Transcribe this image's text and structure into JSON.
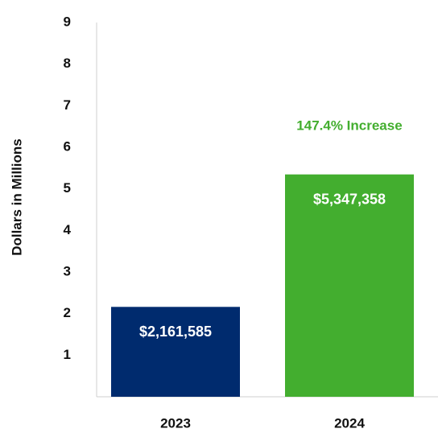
{
  "chart_data": {
    "type": "bar",
    "ylabel": "Dollars in Millions",
    "categories": [
      "2023",
      "2024"
    ],
    "values": [
      2.161585,
      5.347358
    ],
    "value_labels": [
      "$2,161,585",
      "$5,347,358"
    ],
    "colors": [
      "#002b6e",
      "#43ae2f"
    ],
    "annotation": {
      "text": "147.4% Increase",
      "color": "#43ae2f"
    },
    "ylim": [
      0,
      9
    ],
    "yticks": [
      1,
      2,
      3,
      4,
      5,
      6,
      7,
      8,
      9
    ],
    "grid": false
  }
}
